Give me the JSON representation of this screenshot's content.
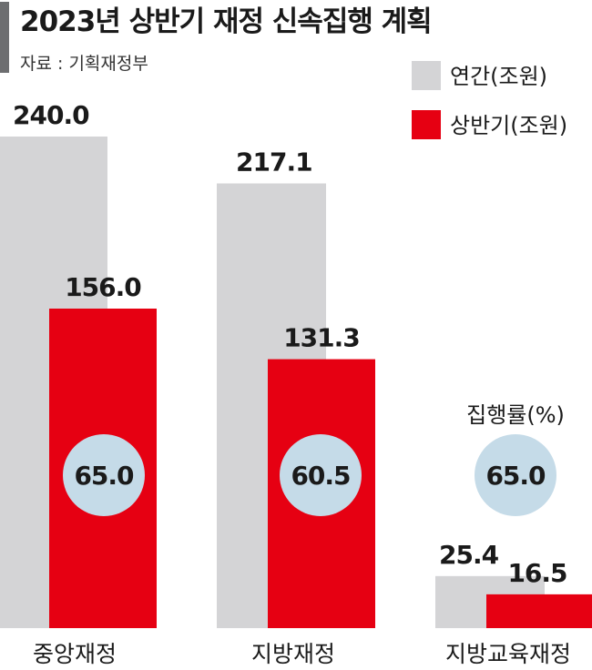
{
  "chart_data": {
    "type": "bar",
    "title": "2023년 상반기 재정 신속집행 계획",
    "source": "자료 : 기획재정부",
    "categories": [
      "중앙재정",
      "지방재정",
      "지방교육재정"
    ],
    "series": [
      {
        "name": "연간(조원)",
        "values": [
          240.0,
          217.1,
          25.4
        ],
        "labels": [
          "240.0",
          "217.1",
          "25.4"
        ],
        "color": "#d4d4d6"
      },
      {
        "name": "상반기(조원)",
        "values": [
          156.0,
          131.3,
          16.5
        ],
        "labels": [
          "156.0",
          "131.3",
          "16.5"
        ],
        "color": "#e60012"
      }
    ],
    "execution_rate": {
      "label": "집행률(%)",
      "values": [
        "65.0",
        "60.5",
        "65.0"
      ],
      "color": "#c5dbe8"
    },
    "grid": false,
    "legend_position": "top-right"
  }
}
